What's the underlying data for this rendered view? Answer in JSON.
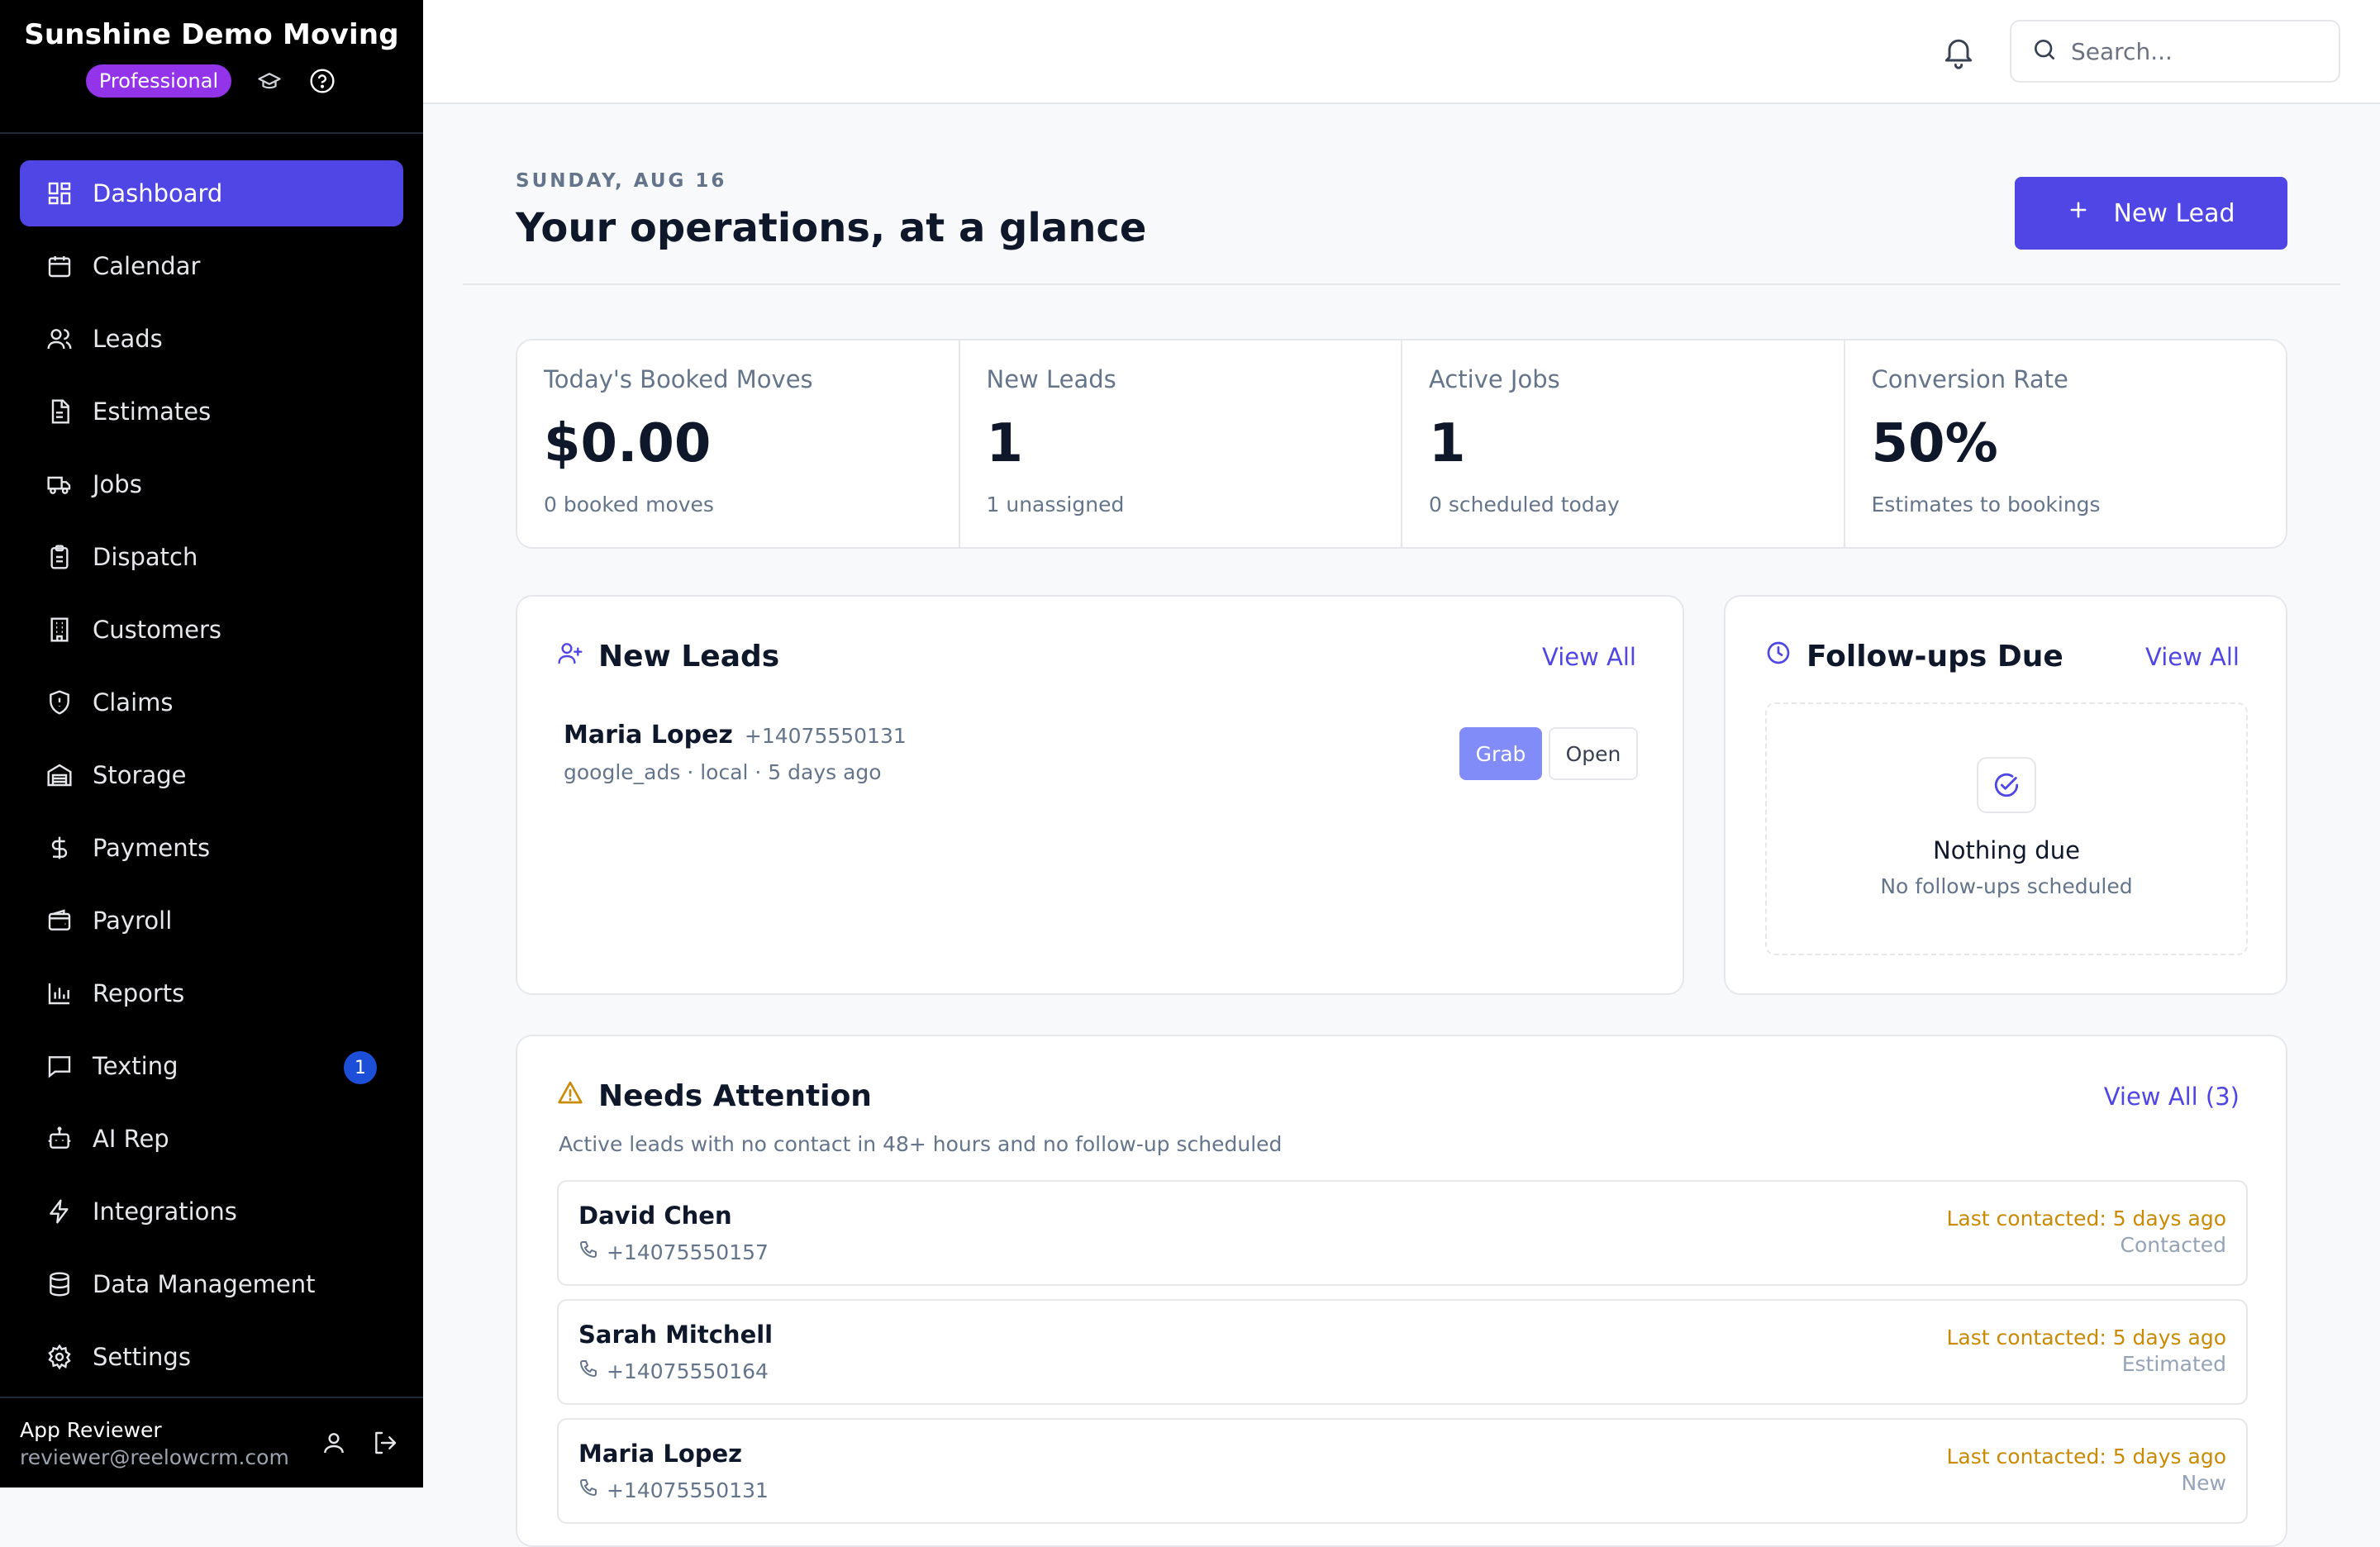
{
  "sidebar": {
    "brand": "Sunshine Demo Moving",
    "plan": "Professional",
    "items": [
      {
        "label": "Dashboard",
        "icon": "dashboard-icon",
        "active": true
      },
      {
        "label": "Calendar",
        "icon": "calendar-icon"
      },
      {
        "label": "Leads",
        "icon": "users-icon"
      },
      {
        "label": "Estimates",
        "icon": "document-icon"
      },
      {
        "label": "Jobs",
        "icon": "truck-icon"
      },
      {
        "label": "Dispatch",
        "icon": "clipboard-icon"
      },
      {
        "label": "Customers",
        "icon": "building-icon"
      },
      {
        "label": "Claims",
        "icon": "shield-icon"
      },
      {
        "label": "Storage",
        "icon": "warehouse-icon"
      },
      {
        "label": "Payments",
        "icon": "dollar-icon"
      },
      {
        "label": "Payroll",
        "icon": "wallet-icon"
      },
      {
        "label": "Reports",
        "icon": "bar-chart-icon"
      },
      {
        "label": "Texting",
        "icon": "message-icon",
        "badge": "1"
      },
      {
        "label": "AI Rep",
        "icon": "bot-icon"
      },
      {
        "label": "Integrations",
        "icon": "zap-icon"
      },
      {
        "label": "Data Management",
        "icon": "database-icon"
      },
      {
        "label": "Settings",
        "icon": "gear-icon"
      }
    ],
    "user": {
      "name": "App Reviewer",
      "email": "reviewer@reelowcrm.com"
    }
  },
  "topbar": {
    "search_placeholder": "Search..."
  },
  "header": {
    "date": "SUNDAY, AUG 16",
    "title": "Your operations, at a glance",
    "new_lead_label": "New Lead"
  },
  "stats": [
    {
      "label": "Today's Booked Moves",
      "value": "$0.00",
      "sub": "0 booked moves"
    },
    {
      "label": "New Leads",
      "value": "1",
      "sub": "1 unassigned"
    },
    {
      "label": "Active Jobs",
      "value": "1",
      "sub": "0 scheduled today"
    },
    {
      "label": "Conversion Rate",
      "value": "50%",
      "sub": "Estimates to bookings"
    }
  ],
  "new_leads": {
    "title": "New Leads",
    "view_all": "View All",
    "items": [
      {
        "name": "Maria Lopez",
        "phone": "+14075550131",
        "meta": "google_ads · local · 5 days ago",
        "grab": "Grab",
        "open": "Open"
      }
    ]
  },
  "followups": {
    "title": "Follow-ups Due",
    "view_all": "View All",
    "empty_title": "Nothing due",
    "empty_sub": "No follow-ups scheduled"
  },
  "attention": {
    "title": "Needs Attention",
    "view_all": "View All (3)",
    "description": "Active leads with no contact in 48+ hours and no follow-up scheduled",
    "items": [
      {
        "name": "David Chen",
        "phone": "+14075550157",
        "last_contacted": "Last contacted: 5 days ago",
        "status": "Contacted"
      },
      {
        "name": "Sarah Mitchell",
        "phone": "+14075550164",
        "last_contacted": "Last contacted: 5 days ago",
        "status": "Estimated"
      },
      {
        "name": "Maria Lopez",
        "phone": "+14075550131",
        "last_contacted": "Last contacted: 5 days ago",
        "status": "New"
      }
    ]
  },
  "colors": {
    "accent": "#4f46e5",
    "sidebar_bg": "#000000",
    "plan_badge": "#9333ea",
    "warning": "#ca8a04"
  }
}
